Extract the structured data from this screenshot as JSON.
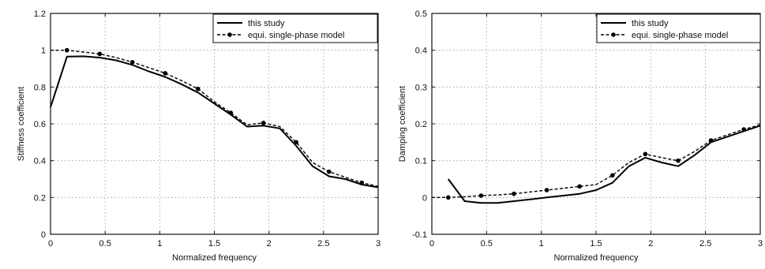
{
  "chart_data": [
    {
      "type": "line",
      "xlabel": "Normalized frequency",
      "ylabel": "Stiffness coefficient",
      "xlim": [
        0,
        3
      ],
      "ylim": [
        0,
        1.2
      ],
      "xticks": [
        "0",
        "0.5",
        "1",
        "1.5",
        "2",
        "2.5",
        "3"
      ],
      "yticks": [
        "0",
        "0.2",
        "0.4",
        "0.6",
        "0.8",
        "1",
        "1.2"
      ],
      "grid": true,
      "legend_position": "top-right",
      "series": [
        {
          "name": "this study",
          "style": "solid",
          "color": "#000000",
          "x": [
            0,
            0.15,
            0.3,
            0.45,
            0.6,
            0.75,
            0.9,
            1.05,
            1.2,
            1.35,
            1.5,
            1.65,
            1.8,
            1.95,
            2.1,
            2.25,
            2.4,
            2.55,
            2.7,
            2.85,
            3.0
          ],
          "y": [
            0.69,
            0.965,
            0.967,
            0.96,
            0.945,
            0.92,
            0.885,
            0.855,
            0.815,
            0.77,
            0.71,
            0.65,
            0.585,
            0.59,
            0.575,
            0.48,
            0.37,
            0.315,
            0.3,
            0.27,
            0.255
          ]
        },
        {
          "name": "equi. single-phase model",
          "style": "dashed-markers",
          "color": "#000000",
          "x": [
            0,
            0.15,
            0.3,
            0.45,
            0.6,
            0.75,
            0.9,
            1.05,
            1.2,
            1.35,
            1.5,
            1.65,
            1.8,
            1.95,
            2.1,
            2.25,
            2.4,
            2.55,
            2.7,
            2.85,
            3.0
          ],
          "y": [
            1.0,
            1.0,
            0.99,
            0.98,
            0.96,
            0.935,
            0.905,
            0.875,
            0.835,
            0.79,
            0.72,
            0.66,
            0.595,
            0.605,
            0.585,
            0.5,
            0.39,
            0.34,
            0.31,
            0.28,
            0.26
          ],
          "markers_x": [
            0.15,
            0.45,
            0.75,
            1.05,
            1.35,
            1.65,
            1.95,
            2.25,
            2.55,
            2.85
          ]
        }
      ]
    },
    {
      "type": "line",
      "xlabel": "Normalized frequency",
      "ylabel": "Damping coefficient",
      "xlim": [
        0,
        3
      ],
      "ylim": [
        -0.1,
        0.5
      ],
      "xticks": [
        "0",
        "0.5",
        "1",
        "1.5",
        "2",
        "2.5",
        "3"
      ],
      "yticks": [
        "-0.1",
        "0",
        "0.1",
        "0.2",
        "0.3",
        "0.4",
        "0.5"
      ],
      "grid": true,
      "legend_position": "top-right",
      "series": [
        {
          "name": "this study",
          "style": "solid",
          "color": "#000000",
          "x": [
            0.15,
            0.3,
            0.45,
            0.6,
            0.75,
            0.9,
            1.05,
            1.2,
            1.35,
            1.5,
            1.65,
            1.8,
            1.95,
            2.1,
            2.25,
            2.4,
            2.55,
            2.7,
            2.85,
            3.0
          ],
          "y": [
            0.05,
            -0.01,
            -0.015,
            -0.015,
            -0.01,
            -0.005,
            0.0,
            0.005,
            0.01,
            0.02,
            0.04,
            0.085,
            0.108,
            0.095,
            0.085,
            0.115,
            0.15,
            0.165,
            0.18,
            0.195
          ]
        },
        {
          "name": "equi. single-phase model",
          "style": "dashed-markers",
          "color": "#000000",
          "x": [
            0,
            0.15,
            0.3,
            0.45,
            0.6,
            0.75,
            0.9,
            1.05,
            1.2,
            1.35,
            1.5,
            1.65,
            1.8,
            1.95,
            2.1,
            2.25,
            2.4,
            2.55,
            2.7,
            2.85,
            3.0
          ],
          "y": [
            0,
            0,
            0.002,
            0.005,
            0.007,
            0.01,
            0.015,
            0.02,
            0.025,
            0.03,
            0.035,
            0.06,
            0.095,
            0.118,
            0.108,
            0.1,
            0.125,
            0.155,
            0.17,
            0.185,
            0.197
          ],
          "markers_x": [
            0.15,
            0.45,
            0.75,
            1.05,
            1.35,
            1.65,
            1.95,
            2.25,
            2.55,
            2.85
          ]
        }
      ]
    }
  ]
}
